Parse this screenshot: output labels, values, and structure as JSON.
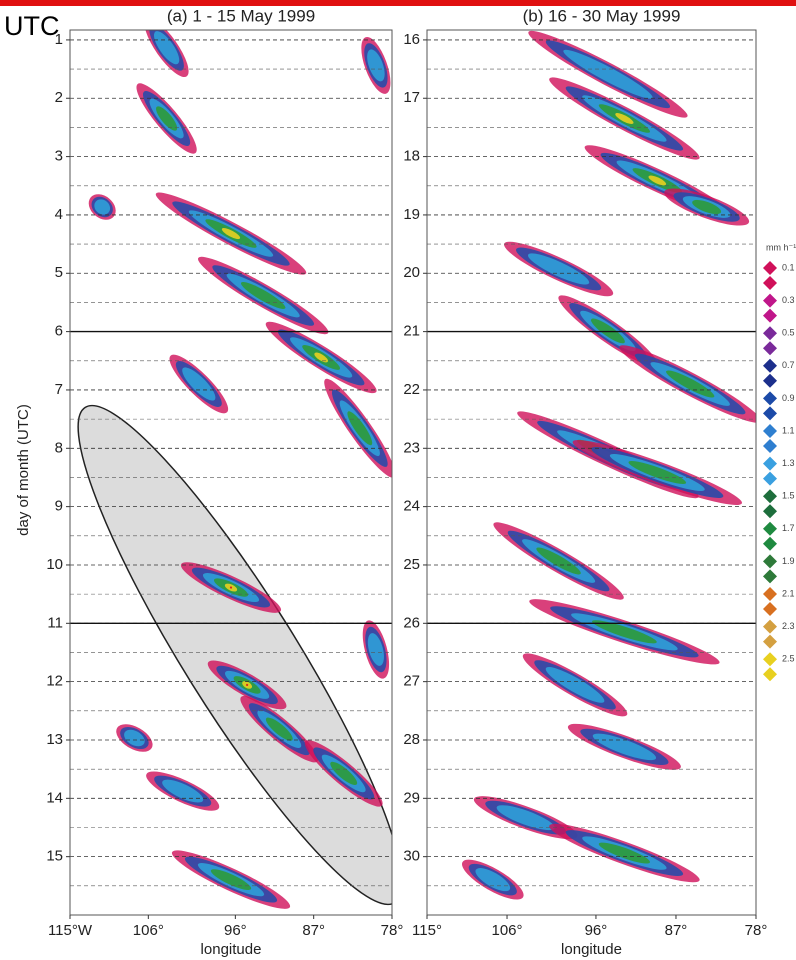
{
  "corner_label": "UTC",
  "chart_data": [
    {
      "type": "hovmoller",
      "title": "(a)  1 - 15 May 1999",
      "x_label": "longitude",
      "y_label": "day of month (UTC)",
      "xlim": [
        115,
        78
      ],
      "ylim": [
        0.83,
        16
      ],
      "xticks": [
        {
          "value": 115,
          "label": "115°W"
        },
        {
          "value": 106,
          "label": "106°"
        },
        {
          "value": 96,
          "label": "96°"
        },
        {
          "value": 87,
          "label": "87°"
        },
        {
          "value": 78,
          "label": "78°"
        }
      ],
      "yticks": [
        1,
        2,
        3,
        4,
        5,
        6,
        7,
        8,
        9,
        10,
        11,
        12,
        13,
        14,
        15
      ],
      "solid_lines": [
        6,
        11
      ],
      "grid": true
    },
    {
      "type": "hovmoller",
      "title": "(b)  16 - 30 May 1999",
      "x_label": "longitude",
      "xlim": [
        115,
        78
      ],
      "ylim": [
        15.83,
        31
      ],
      "xticks": [
        {
          "value": 115,
          "label": "115°"
        },
        {
          "value": 106,
          "label": "106°"
        },
        {
          "value": 96,
          "label": "96°"
        },
        {
          "value": 87,
          "label": "87°"
        },
        {
          "value": 78,
          "label": "78°"
        }
      ],
      "yticks": [
        16,
        17,
        18,
        19,
        20,
        21,
        22,
        23,
        24,
        25,
        26,
        27,
        28,
        29,
        30
      ],
      "solid_lines": [
        21,
        26
      ],
      "grid": true
    }
  ],
  "legend": {
    "title": "mm h⁻¹",
    "levels": [
      0.1,
      0.3,
      0.5,
      0.7,
      0.9,
      1.1,
      1.3,
      1.5,
      1.7,
      1.9,
      2.1,
      2.3,
      2.5
    ],
    "colors": [
      "#d0105a",
      "#c0168a",
      "#7a2a9a",
      "#1c2f8c",
      "#1c4aa8",
      "#2f7fd0",
      "#3aa0e0",
      "#1e6e3c",
      "#1f8a40",
      "#2e7a3a",
      "#d87020",
      "#d4a040",
      "#e8d020"
    ]
  }
}
